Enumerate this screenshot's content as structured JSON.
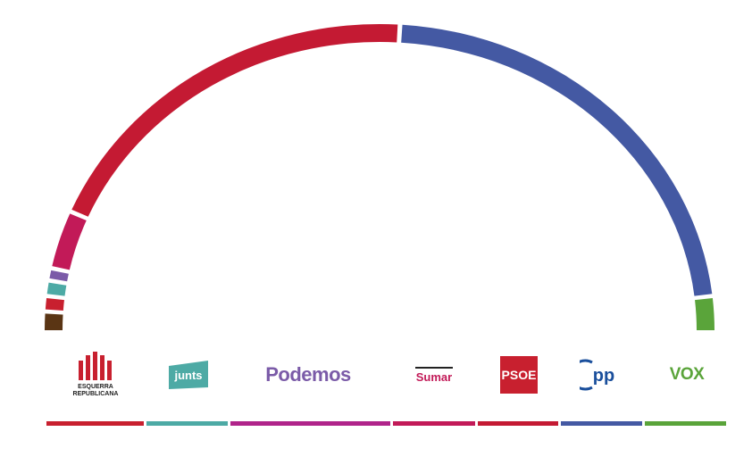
{
  "chart_data": {
    "type": "hemicycle",
    "title": "",
    "parties": [
      {
        "name": "",
        "seats": 6,
        "color": "#5a3514"
      },
      {
        "name": "",
        "seats": 5,
        "color": "#c8202f"
      },
      {
        "name": "",
        "seats": 5,
        "color": "#4daaa5"
      },
      {
        "name": "",
        "seats": 4,
        "color": "#7b5ba8"
      },
      {
        "name": "",
        "seats": 19,
        "color": "#c21a58"
      },
      {
        "name": "",
        "seats": 121,
        "color": "#c41a33"
      },
      {
        "name": "",
        "seats": 137,
        "color": "#4459a3"
      },
      {
        "name": "",
        "seats": 11,
        "color": "#5aa43a"
      }
    ]
  },
  "logos": [
    {
      "key": "erc",
      "line1": "ESQUERRA",
      "line2": "REPUBLICANA",
      "color": "#c8202f"
    },
    {
      "key": "junts",
      "text": "junts",
      "bg": "#4daaa5",
      "color": "#ffffff"
    },
    {
      "key": "podemos",
      "text": "Podemos",
      "color": "#7b5ba8"
    },
    {
      "key": "sumar",
      "text": "Sumar",
      "color": "#c21a58"
    },
    {
      "key": "psoe",
      "text": "PSOE",
      "bg": "#c8202f",
      "color": "#ffffff"
    },
    {
      "key": "pp",
      "text": "pp",
      "color": "#1a4f9c"
    },
    {
      "key": "vox",
      "text": "VOX",
      "color": "#5aa43a"
    }
  ],
  "bottom_bar_colors": [
    "#c8202f",
    "#4daaa5",
    "#b0248a",
    "#c21a58",
    "#c41a33",
    "#4459a3",
    "#5aa43a"
  ]
}
